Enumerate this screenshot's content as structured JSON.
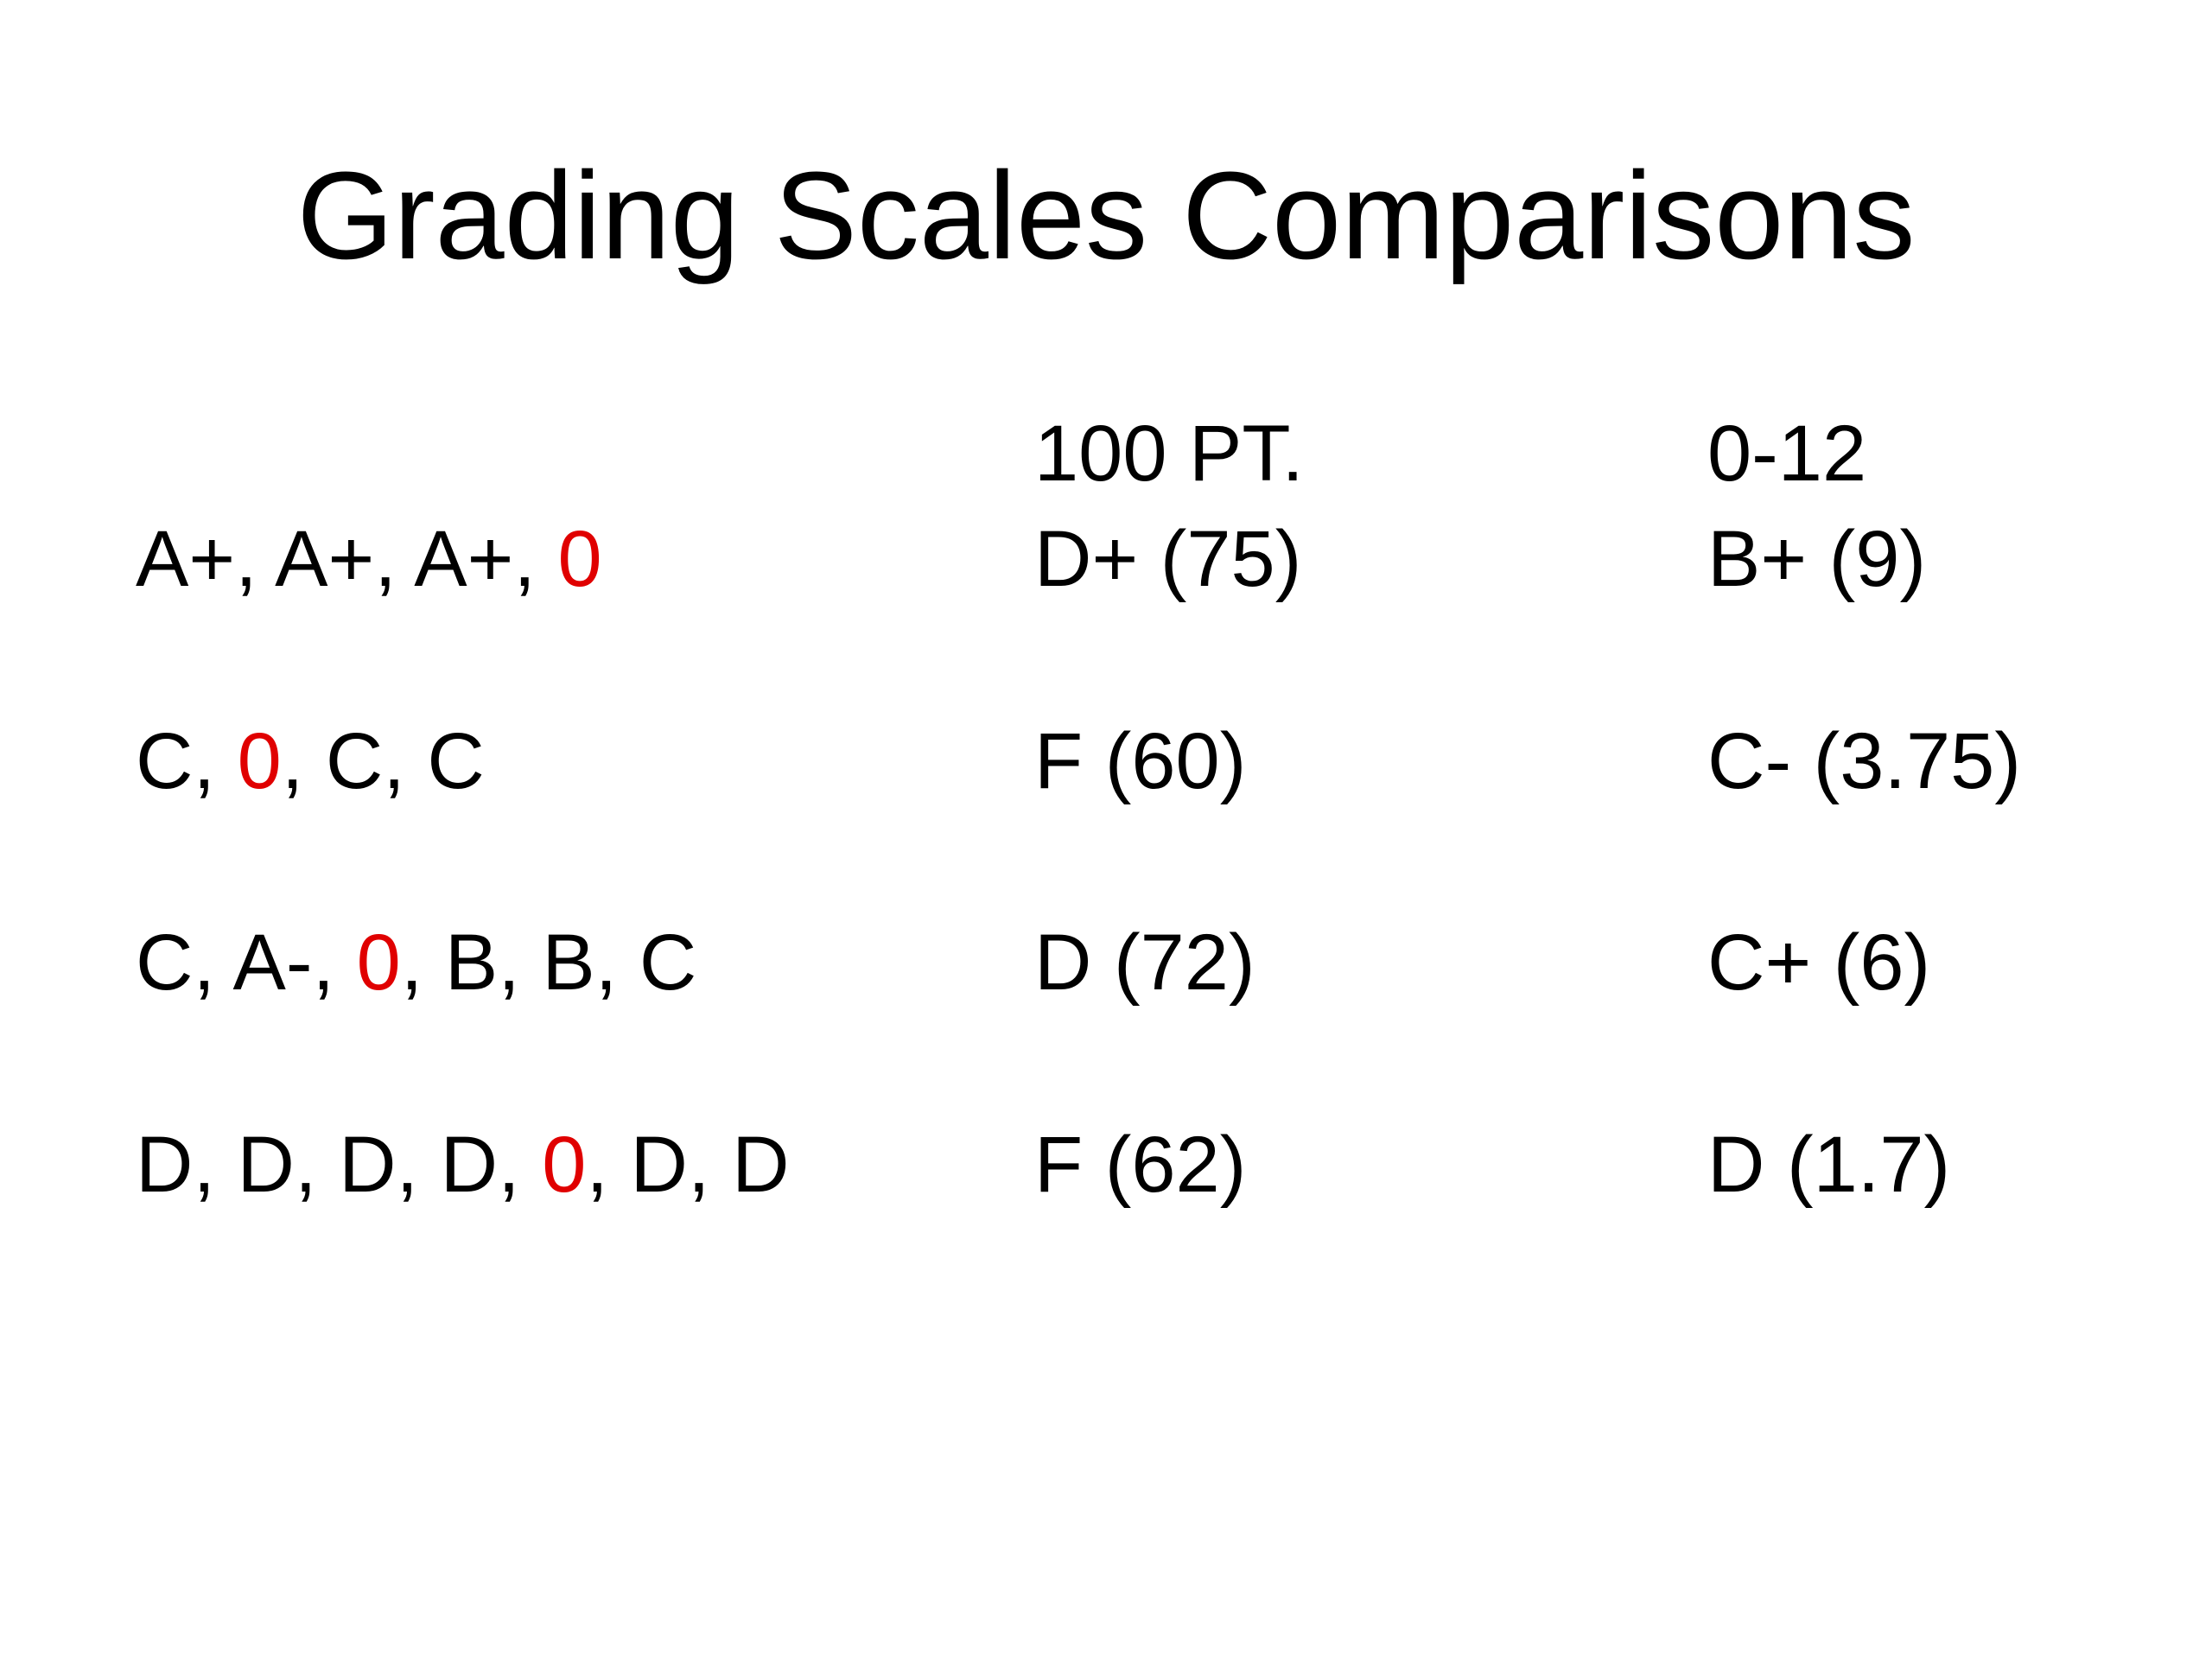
{
  "title": "Grading Scales Comparisons",
  "table": {
    "headers": [
      "100 PT.",
      "0-12"
    ],
    "rows": [
      {
        "grades": [
          {
            "text": "A+, A+, A+, "
          },
          {
            "text": "0",
            "color": "#e00000"
          }
        ],
        "pt100": "D+ (75)",
        "pt12": "B+ (9)"
      },
      {
        "grades": [
          {
            "text": "C, "
          },
          {
            "text": "0",
            "color": "#e00000"
          },
          {
            "text": ", C, C"
          }
        ],
        "pt100": "F (60)",
        "pt12": "C- (3.75)"
      },
      {
        "grades": [
          {
            "text": "C, A-, "
          },
          {
            "text": "0",
            "color": "#e00000"
          },
          {
            "text": ", B, B, C"
          }
        ],
        "pt100": "D (72)",
        "pt12": "C+ (6)"
      },
      {
        "grades": [
          {
            "text": "D, D, D, D, "
          },
          {
            "text": "0",
            "color": "#e00000"
          },
          {
            "text": ", D, D"
          }
        ],
        "pt100": "F (62)",
        "pt12": "D (1.7)"
      }
    ]
  }
}
